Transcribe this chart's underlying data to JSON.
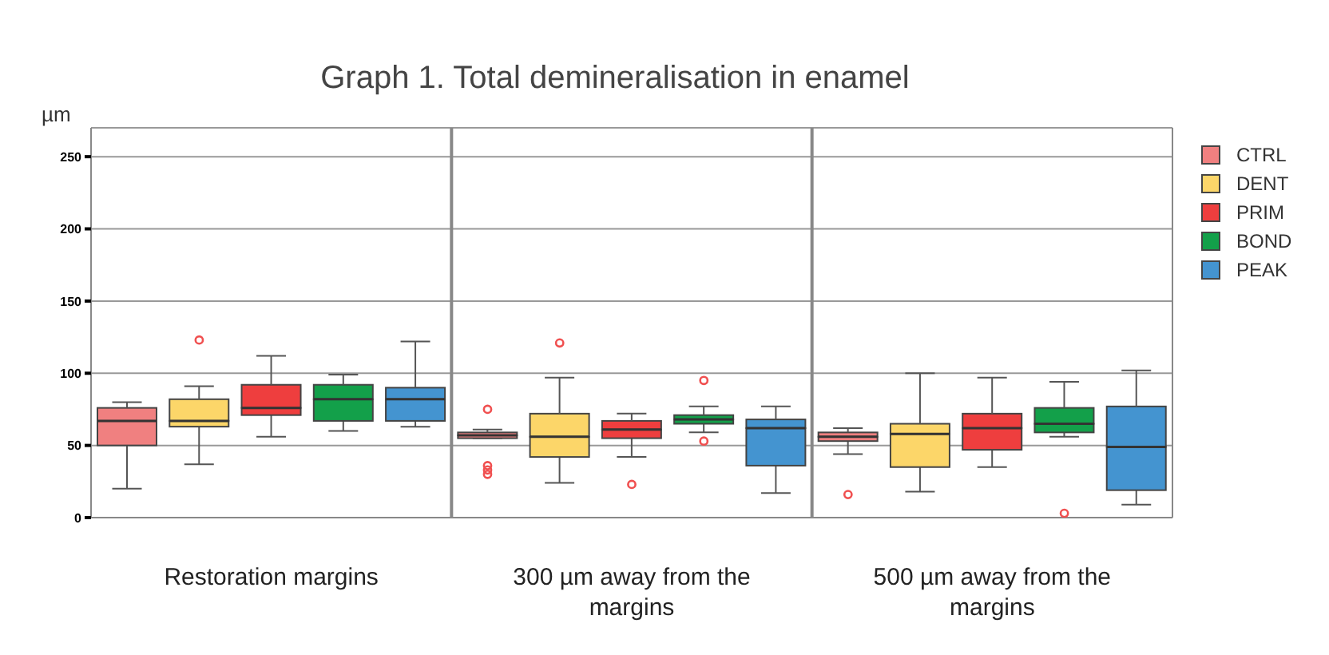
{
  "chart_data": {
    "type": "box",
    "title": "Graph 1. Total demineralisation in enamel",
    "ylabel": "µm",
    "categories": [
      "Restoration margins",
      "300 µm away from the margins",
      "500 µm away from the margins"
    ],
    "ylim": [
      0,
      270
    ],
    "yticks": [
      0,
      50,
      100,
      150,
      200,
      250
    ],
    "grid": "y",
    "legend": "right",
    "series": [
      {
        "name": "CTRL",
        "color": "#f08080",
        "boxes": [
          {
            "low": 20,
            "q1": 50,
            "median": 67,
            "q3": 76,
            "high": 80
          },
          {
            "low": 55,
            "q1": 55,
            "median": 57,
            "q3": 59,
            "high": 61,
            "outliers": [
              75,
              36,
              33,
              30
            ]
          },
          {
            "low": 44,
            "q1": 53,
            "median": 56,
            "q3": 59,
            "high": 62,
            "outliers": [
              16
            ]
          }
        ]
      },
      {
        "name": "DENT",
        "color": "#fcd669",
        "boxes": [
          {
            "low": 37,
            "q1": 63,
            "median": 67,
            "q3": 82,
            "high": 91,
            "outliers": [
              123
            ]
          },
          {
            "low": 24,
            "q1": 42,
            "median": 56,
            "q3": 72,
            "high": 97,
            "outliers": [
              121
            ]
          },
          {
            "low": 18,
            "q1": 35,
            "median": 58,
            "q3": 65,
            "high": 100
          }
        ]
      },
      {
        "name": "PRIM",
        "color": "#ee3e3e",
        "boxes": [
          {
            "low": 56,
            "q1": 71,
            "median": 76,
            "q3": 92,
            "high": 112
          },
          {
            "low": 42,
            "q1": 55,
            "median": 61,
            "q3": 67,
            "high": 72,
            "outliers": [
              23
            ]
          },
          {
            "low": 35,
            "q1": 47,
            "median": 62,
            "q3": 72,
            "high": 97
          }
        ]
      },
      {
        "name": "BOND",
        "color": "#13a04a",
        "boxes": [
          {
            "low": 60,
            "q1": 67,
            "median": 82,
            "q3": 92,
            "high": 99
          },
          {
            "low": 59,
            "q1": 65,
            "median": 68,
            "q3": 71,
            "high": 77,
            "outliers": [
              95,
              53
            ]
          },
          {
            "low": 56,
            "q1": 59,
            "median": 65,
            "q3": 76,
            "high": 94,
            "outliers": [
              3
            ]
          }
        ]
      },
      {
        "name": "PEAK",
        "color": "#4494d0",
        "boxes": [
          {
            "low": 63,
            "q1": 67,
            "median": 82,
            "q3": 90,
            "high": 122
          },
          {
            "low": 17,
            "q1": 36,
            "median": 62,
            "q3": 68,
            "high": 77
          },
          {
            "low": 9,
            "q1": 19,
            "median": 49,
            "q3": 77,
            "high": 102
          }
        ]
      }
    ]
  }
}
